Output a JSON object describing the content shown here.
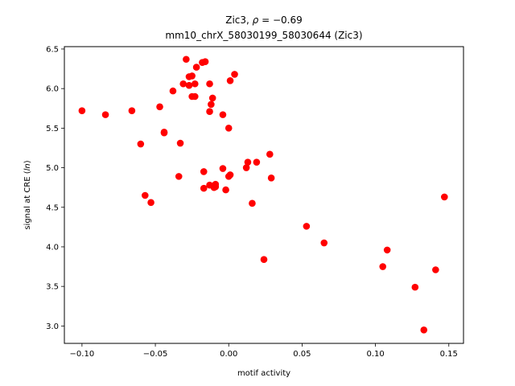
{
  "chart_data": {
    "type": "scatter",
    "title": "Zic3, ρ = −0.69",
    "title_parts": {
      "prefix": "Zic3, ",
      "rho_symbol": "ρ",
      "rho_value": " = −0.69"
    },
    "subtitle": "mm10_chrX_58030199_58030644 (Zic3)",
    "xlabel": "motif activity",
    "ylabel": "signal at CRE (ln)",
    "ylabel_parts": {
      "prefix": "signal at CRE (",
      "italic": "ln",
      "suffix": ")"
    },
    "xlim": [
      -0.112,
      0.16
    ],
    "ylim": [
      2.78,
      6.53
    ],
    "xticks": [
      -0.1,
      -0.05,
      0.0,
      0.05,
      0.1,
      0.15
    ],
    "xtick_labels": [
      "−0.10",
      "−0.05",
      "0.00",
      "0.05",
      "0.10",
      "0.15"
    ],
    "yticks": [
      3.0,
      3.5,
      4.0,
      4.5,
      5.0,
      5.5,
      6.0,
      6.5
    ],
    "ytick_labels": [
      "3.0",
      "3.5",
      "4.0",
      "4.5",
      "5.0",
      "5.5",
      "6.0",
      "6.5"
    ],
    "grid": false,
    "marker_color": "#ff0000",
    "points": [
      [
        -0.1,
        5.72
      ],
      [
        -0.084,
        5.67
      ],
      [
        -0.066,
        5.72
      ],
      [
        -0.06,
        5.3
      ],
      [
        -0.057,
        4.65
      ],
      [
        -0.053,
        4.56
      ],
      [
        -0.047,
        5.77
      ],
      [
        -0.044,
        5.45
      ],
      [
        -0.044,
        5.44
      ],
      [
        -0.038,
        5.97
      ],
      [
        -0.034,
        4.89
      ],
      [
        -0.033,
        5.31
      ],
      [
        -0.031,
        6.06
      ],
      [
        -0.029,
        6.37
      ],
      [
        -0.027,
        6.15
      ],
      [
        -0.027,
        6.04
      ],
      [
        -0.025,
        6.16
      ],
      [
        -0.025,
        5.9
      ],
      [
        -0.023,
        6.06
      ],
      [
        -0.023,
        5.9
      ],
      [
        -0.022,
        6.27
      ],
      [
        -0.018,
        6.33
      ],
      [
        -0.017,
        4.95
      ],
      [
        -0.017,
        4.74
      ],
      [
        -0.016,
        6.34
      ],
      [
        -0.013,
        4.78
      ],
      [
        -0.013,
        6.06
      ],
      [
        -0.013,
        5.71
      ],
      [
        -0.012,
        5.8
      ],
      [
        -0.011,
        5.88
      ],
      [
        -0.01,
        4.75
      ],
      [
        -0.009,
        4.79
      ],
      [
        -0.009,
        4.76
      ],
      [
        -0.004,
        4.99
      ],
      [
        -0.004,
        5.67
      ],
      [
        -0.002,
        4.72
      ],
      [
        0.0,
        5.5
      ],
      [
        0.0,
        4.89
      ],
      [
        0.001,
        4.91
      ],
      [
        0.001,
        6.1
      ],
      [
        0.004,
        6.18
      ],
      [
        0.012,
        5.0
      ],
      [
        0.013,
        5.07
      ],
      [
        0.016,
        4.55
      ],
      [
        0.019,
        5.07
      ],
      [
        0.024,
        3.84
      ],
      [
        0.028,
        5.17
      ],
      [
        0.029,
        4.87
      ],
      [
        0.053,
        4.26
      ],
      [
        0.065,
        4.05
      ],
      [
        0.105,
        3.75
      ],
      [
        0.108,
        3.96
      ],
      [
        0.127,
        3.49
      ],
      [
        0.133,
        2.95
      ],
      [
        0.141,
        3.71
      ],
      [
        0.147,
        4.63
      ]
    ]
  }
}
